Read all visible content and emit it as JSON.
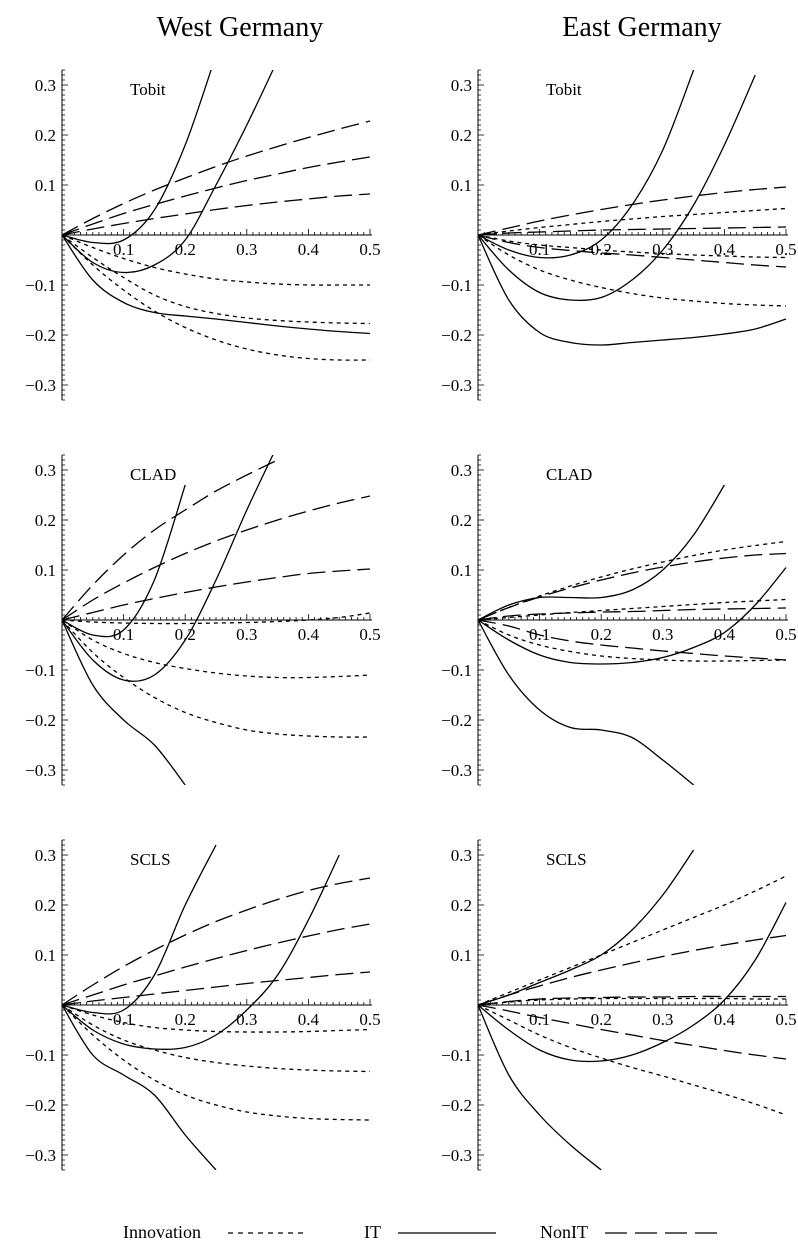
{
  "columns": {
    "west": "West Germany",
    "east": "East Germany"
  },
  "legend": {
    "innovation": "Innovation",
    "it": "IT",
    "nonit": "NonIT"
  },
  "styles": {
    "innovation": "dotted",
    "it": "solid",
    "nonit": "dashed"
  },
  "chart_data": [
    {
      "type": "line",
      "title": "Tobit",
      "group": "West Germany",
      "xlim": [
        0,
        0.5
      ],
      "ylim": [
        -0.33,
        0.33
      ],
      "xticks": [
        "0.1",
        "0.2",
        "0.3",
        "0.4",
        "0.5"
      ],
      "yticks": [
        "0.3",
        "0.2",
        "0.1",
        "-0.1",
        "-0.2",
        "-0.3"
      ],
      "x": [
        0,
        0.05,
        0.1,
        0.15,
        0.2,
        0.25,
        0.3,
        0.35,
        0.4,
        0.45,
        0.5
      ],
      "series": [
        {
          "kind": "it",
          "values": [
            0,
            -0.015,
            -0.01,
            0.05,
            0.18,
            0.36,
            null,
            null,
            null,
            null,
            null
          ]
        },
        {
          "kind": "it",
          "values": [
            0,
            -0.055,
            -0.075,
            -0.06,
            -0.01,
            0.1,
            0.22,
            0.35,
            null,
            null,
            null
          ]
        },
        {
          "kind": "it",
          "values": [
            0,
            -0.09,
            -0.135,
            -0.155,
            -0.162,
            -0.168,
            -0.175,
            -0.182,
            -0.188,
            -0.193,
            -0.197
          ]
        },
        {
          "kind": "nonit",
          "values": [
            0,
            0.033,
            0.063,
            0.09,
            0.114,
            0.137,
            0.158,
            0.177,
            0.195,
            0.212,
            0.228
          ]
        },
        {
          "kind": "nonit",
          "values": [
            0,
            0.022,
            0.043,
            0.061,
            0.078,
            0.094,
            0.109,
            0.122,
            0.135,
            0.146,
            0.156
          ]
        },
        {
          "kind": "nonit",
          "values": [
            0,
            0.012,
            0.023,
            0.033,
            0.042,
            0.051,
            0.059,
            0.066,
            0.072,
            0.078,
            0.082
          ]
        },
        {
          "kind": "innovation",
          "values": [
            0,
            -0.025,
            -0.047,
            -0.065,
            -0.078,
            -0.088,
            -0.094,
            -0.098,
            -0.1,
            -0.1,
            -0.1
          ]
        },
        {
          "kind": "innovation",
          "values": [
            0,
            -0.045,
            -0.085,
            -0.12,
            -0.143,
            -0.157,
            -0.166,
            -0.171,
            -0.174,
            -0.176,
            -0.177
          ]
        },
        {
          "kind": "innovation",
          "values": [
            0,
            -0.06,
            -0.11,
            -0.152,
            -0.185,
            -0.21,
            -0.228,
            -0.24,
            -0.247,
            -0.25,
            -0.25
          ]
        }
      ]
    },
    {
      "type": "line",
      "title": "Tobit",
      "group": "East Germany",
      "xlim": [
        0,
        0.5
      ],
      "ylim": [
        -0.33,
        0.33
      ],
      "xticks": [
        "0.1",
        "0.2",
        "0.3",
        "0.4",
        "0.5"
      ],
      "yticks": [
        "0.3",
        "0.2",
        "0.1",
        "-0.1",
        "-0.2",
        "-0.3"
      ],
      "x": [
        0,
        0.05,
        0.1,
        0.15,
        0.2,
        0.25,
        0.3,
        0.35,
        0.4,
        0.45,
        0.5
      ],
      "series": [
        {
          "kind": "it",
          "values": [
            0,
            -0.03,
            -0.045,
            -0.04,
            -0.01,
            0.06,
            0.17,
            0.33,
            null,
            null,
            null
          ]
        },
        {
          "kind": "it",
          "values": [
            0,
            -0.07,
            -0.115,
            -0.13,
            -0.125,
            -0.09,
            -0.03,
            0.06,
            0.18,
            0.32,
            null
          ]
        },
        {
          "kind": "it",
          "values": [
            0,
            -0.13,
            -0.195,
            -0.215,
            -0.22,
            -0.215,
            -0.21,
            -0.205,
            -0.198,
            -0.188,
            -0.168
          ]
        },
        {
          "kind": "nonit",
          "values": [
            0,
            0.014,
            0.028,
            0.04,
            0.051,
            0.061,
            0.07,
            0.078,
            0.085,
            0.091,
            0.096
          ]
        },
        {
          "kind": "nonit",
          "values": [
            0,
            0.004,
            0.006,
            0.008,
            0.01,
            0.011,
            0.012,
            0.013,
            0.014,
            0.015,
            0.016
          ]
        },
        {
          "kind": "nonit",
          "values": [
            0,
            -0.015,
            -0.025,
            -0.031,
            -0.036,
            -0.04,
            -0.045,
            -0.05,
            -0.055,
            -0.06,
            -0.064
          ]
        },
        {
          "kind": "innovation",
          "values": [
            0,
            0.008,
            0.015,
            0.021,
            0.027,
            0.032,
            0.037,
            0.041,
            0.045,
            0.049,
            0.053
          ]
        },
        {
          "kind": "innovation",
          "values": [
            0,
            -0.012,
            -0.02,
            -0.025,
            -0.03,
            -0.034,
            -0.037,
            -0.04,
            -0.042,
            -0.044,
            -0.045
          ]
        },
        {
          "kind": "innovation",
          "values": [
            0,
            -0.04,
            -0.07,
            -0.09,
            -0.105,
            -0.117,
            -0.126,
            -0.132,
            -0.137,
            -0.14,
            -0.142
          ]
        }
      ]
    },
    {
      "type": "line",
      "title": "CLAD",
      "group": "West Germany",
      "xlim": [
        0,
        0.5
      ],
      "ylim": [
        -0.33,
        0.33
      ],
      "xticks": [
        "0.1",
        "0.2",
        "0.3",
        "0.4",
        "0.5"
      ],
      "yticks": [
        "0.3",
        "0.2",
        "0.1",
        "-0.1",
        "-0.2",
        "-0.3"
      ],
      "x": [
        0,
        0.05,
        0.1,
        0.15,
        0.2,
        0.25,
        0.3,
        0.35,
        0.4,
        0.45,
        0.5
      ],
      "series": [
        {
          "kind": "it",
          "values": [
            0,
            -0.03,
            -0.02,
            0.08,
            0.27,
            null,
            null,
            null,
            null,
            null,
            null
          ]
        },
        {
          "kind": "it",
          "values": [
            0,
            -0.08,
            -0.12,
            -0.11,
            -0.04,
            0.08,
            0.22,
            0.35,
            null,
            null,
            null
          ]
        },
        {
          "kind": "it",
          "values": [
            0,
            -0.13,
            -0.2,
            -0.25,
            -0.33,
            null,
            null,
            null,
            null,
            null,
            null
          ]
        },
        {
          "kind": "nonit",
          "values": [
            0,
            0.07,
            0.13,
            0.18,
            0.22,
            0.258,
            0.29,
            0.32,
            null,
            null,
            null
          ]
        },
        {
          "kind": "nonit",
          "values": [
            0,
            0.04,
            0.074,
            0.105,
            0.133,
            0.158,
            0.18,
            0.2,
            0.218,
            0.234,
            0.248
          ]
        },
        {
          "kind": "nonit",
          "values": [
            0,
            0.015,
            0.03,
            0.043,
            0.055,
            0.066,
            0.076,
            0.085,
            0.093,
            0.098,
            0.102
          ]
        },
        {
          "kind": "innovation",
          "values": [
            0,
            -0.004,
            -0.006,
            -0.007,
            -0.007,
            -0.006,
            -0.005,
            -0.003,
            0,
            0.005,
            0.014
          ]
        },
        {
          "kind": "innovation",
          "values": [
            0,
            -0.04,
            -0.067,
            -0.085,
            -0.097,
            -0.106,
            -0.112,
            -0.115,
            -0.115,
            -0.113,
            -0.11
          ]
        },
        {
          "kind": "innovation",
          "values": [
            0,
            -0.065,
            -0.115,
            -0.155,
            -0.185,
            -0.205,
            -0.22,
            -0.228,
            -0.232,
            -0.234,
            -0.234
          ]
        }
      ]
    },
    {
      "type": "line",
      "title": "CLAD",
      "group": "East Germany",
      "xlim": [
        0,
        0.5
      ],
      "ylim": [
        -0.33,
        0.33
      ],
      "xticks": [
        "0.1",
        "0.2",
        "0.3",
        "0.4",
        "0.5"
      ],
      "yticks": [
        "0.3",
        "0.2",
        "0.1",
        "-0.1",
        "-0.2",
        "-0.3"
      ],
      "x": [
        0,
        0.05,
        0.1,
        0.15,
        0.2,
        0.25,
        0.3,
        0.35,
        0.4,
        0.45,
        0.5
      ],
      "series": [
        {
          "kind": "it",
          "values": [
            0,
            0.03,
            0.045,
            0.045,
            0.045,
            0.06,
            0.1,
            0.17,
            0.27,
            null,
            null
          ]
        },
        {
          "kind": "it",
          "values": [
            0,
            -0.04,
            -0.07,
            -0.085,
            -0.088,
            -0.085,
            -0.075,
            -0.055,
            -0.025,
            0.03,
            0.105
          ]
        },
        {
          "kind": "it",
          "values": [
            0,
            -0.11,
            -0.18,
            -0.215,
            -0.22,
            -0.235,
            -0.28,
            -0.33,
            null,
            null,
            null
          ]
        },
        {
          "kind": "nonit",
          "values": [
            0,
            0.025,
            0.046,
            0.064,
            0.08,
            0.094,
            0.106,
            0.116,
            0.124,
            0.13,
            0.133
          ]
        },
        {
          "kind": "nonit",
          "values": [
            0,
            0.008,
            0.012,
            0.014,
            0.016,
            0.017,
            0.019,
            0.021,
            0.022,
            0.023,
            0.024
          ]
        },
        {
          "kind": "nonit",
          "values": [
            0,
            -0.012,
            -0.03,
            -0.042,
            -0.05,
            -0.056,
            -0.062,
            -0.067,
            -0.072,
            -0.076,
            -0.08
          ]
        },
        {
          "kind": "innovation",
          "values": [
            0,
            0.025,
            0.048,
            0.068,
            0.086,
            0.102,
            0.116,
            0.129,
            0.14,
            0.149,
            0.157
          ]
        },
        {
          "kind": "innovation",
          "values": [
            0,
            0.005,
            0.01,
            0.015,
            0.019,
            0.023,
            0.027,
            0.031,
            0.035,
            0.038,
            0.041
          ]
        },
        {
          "kind": "innovation",
          "values": [
            0,
            -0.03,
            -0.05,
            -0.063,
            -0.072,
            -0.077,
            -0.08,
            -0.082,
            -0.082,
            -0.081,
            -0.08
          ]
        }
      ]
    },
    {
      "type": "line",
      "title": "SCLS",
      "group": "West Germany",
      "xlim": [
        0,
        0.5
      ],
      "ylim": [
        -0.33,
        0.33
      ],
      "xticks": [
        "0.1",
        "0.2",
        "0.3",
        "0.4",
        "0.5"
      ],
      "yticks": [
        "0.3",
        "0.2",
        "0.1",
        "-0.1",
        "-0.2",
        "-0.3"
      ],
      "x": [
        0,
        0.05,
        0.1,
        0.15,
        0.2,
        0.25,
        0.3,
        0.35,
        0.4,
        0.45,
        0.5
      ],
      "series": [
        {
          "kind": "it",
          "values": [
            0,
            -0.015,
            -0.01,
            0.06,
            0.2,
            0.32,
            null,
            null,
            null,
            null,
            null
          ]
        },
        {
          "kind": "it",
          "values": [
            0,
            -0.05,
            -0.078,
            -0.088,
            -0.085,
            -0.06,
            -0.01,
            0.06,
            0.17,
            0.3,
            null
          ]
        },
        {
          "kind": "it",
          "values": [
            0,
            -0.1,
            -0.14,
            -0.18,
            -0.26,
            -0.33,
            null,
            null,
            null,
            null,
            null
          ]
        },
        {
          "kind": "nonit",
          "values": [
            0,
            0.04,
            0.077,
            0.11,
            0.14,
            0.167,
            0.19,
            0.211,
            0.229,
            0.243,
            0.254
          ]
        },
        {
          "kind": "nonit",
          "values": [
            0,
            0.02,
            0.04,
            0.058,
            0.076,
            0.093,
            0.109,
            0.124,
            0.138,
            0.151,
            0.162
          ]
        },
        {
          "kind": "nonit",
          "values": [
            0,
            0.008,
            0.015,
            0.022,
            0.029,
            0.036,
            0.043,
            0.049,
            0.055,
            0.061,
            0.066
          ]
        },
        {
          "kind": "innovation",
          "values": [
            0,
            -0.02,
            -0.035,
            -0.045,
            -0.05,
            -0.053,
            -0.054,
            -0.054,
            -0.053,
            -0.051,
            -0.049
          ]
        },
        {
          "kind": "innovation",
          "values": [
            0,
            -0.04,
            -0.07,
            -0.09,
            -0.105,
            -0.115,
            -0.122,
            -0.127,
            -0.13,
            -0.132,
            -0.133
          ]
        },
        {
          "kind": "innovation",
          "values": [
            0,
            -0.06,
            -0.11,
            -0.15,
            -0.18,
            -0.2,
            -0.214,
            -0.222,
            -0.227,
            -0.229,
            -0.23
          ]
        }
      ]
    },
    {
      "type": "line",
      "title": "SCLS",
      "group": "East Germany",
      "xlim": [
        0,
        0.5
      ],
      "ylim": [
        -0.33,
        0.33
      ],
      "xticks": [
        "0.1",
        "0.2",
        "0.3",
        "0.4",
        "0.5"
      ],
      "yticks": [
        "0.3",
        "0.2",
        "0.1",
        "-0.1",
        "-0.2",
        "-0.3"
      ],
      "x": [
        0,
        0.05,
        0.1,
        0.15,
        0.2,
        0.25,
        0.3,
        0.35,
        0.4,
        0.45,
        0.5
      ],
      "series": [
        {
          "kind": "it",
          "values": [
            0,
            0.02,
            0.045,
            0.07,
            0.1,
            0.15,
            0.22,
            0.31,
            null,
            null,
            null
          ]
        },
        {
          "kind": "it",
          "values": [
            0,
            -0.05,
            -0.09,
            -0.11,
            -0.112,
            -0.1,
            -0.075,
            -0.04,
            0.01,
            0.09,
            0.205
          ]
        },
        {
          "kind": "it",
          "values": [
            0,
            -0.14,
            -0.22,
            -0.28,
            -0.33,
            null,
            null,
            null,
            null,
            null,
            null
          ]
        },
        {
          "kind": "nonit",
          "values": [
            0,
            0.02,
            0.038,
            0.055,
            0.07,
            0.084,
            0.097,
            0.109,
            0.12,
            0.13,
            0.139
          ]
        },
        {
          "kind": "nonit",
          "values": [
            0,
            0.007,
            0.012,
            0.014,
            0.015,
            0.016,
            0.016,
            0.017,
            0.017,
            0.017,
            0.017
          ]
        },
        {
          "kind": "nonit",
          "values": [
            0,
            -0.012,
            -0.025,
            -0.037,
            -0.049,
            -0.06,
            -0.071,
            -0.081,
            -0.091,
            -0.1,
            -0.108
          ]
        },
        {
          "kind": "innovation",
          "values": [
            0,
            0.025,
            0.05,
            0.075,
            0.1,
            0.125,
            0.15,
            0.175,
            0.2,
            0.228,
            0.258
          ]
        },
        {
          "kind": "innovation",
          "values": [
            0,
            0.006,
            0.01,
            0.012,
            0.013,
            0.013,
            0.013,
            0.013,
            0.013,
            0.012,
            0.012
          ]
        },
        {
          "kind": "innovation",
          "values": [
            0,
            -0.03,
            -0.06,
            -0.085,
            -0.106,
            -0.125,
            -0.142,
            -0.16,
            -0.178,
            -0.198,
            -0.22
          ]
        }
      ]
    }
  ]
}
